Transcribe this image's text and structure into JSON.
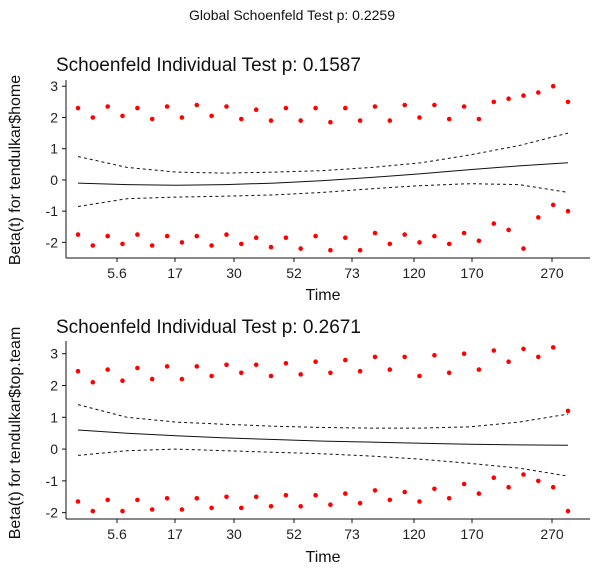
{
  "global_title": "Global Schoenfeld Test p: 0.2259",
  "chart_data": [
    {
      "type": "scatter",
      "title": "Schoenfeld Individual Test p: 0.1587",
      "xlabel": "Time",
      "ylabel": "Beta(t) for tendulkar$home",
      "x_tick_labels": [
        "5.6",
        "17",
        "30",
        "52",
        "73",
        "120",
        "170",
        "270"
      ],
      "y_ticks": [
        -2,
        -1,
        0,
        1,
        2,
        3
      ],
      "ylim": [
        -2.5,
        3.2
      ],
      "point_color": "#ff0000",
      "residual_bands": [
        {
          "name": "upper",
          "y": [
            2.3,
            2.0,
            2.35,
            2.05,
            2.3,
            1.95,
            2.35,
            2.0,
            2.4,
            2.05,
            2.35,
            1.95,
            2.25,
            1.9,
            2.3,
            1.9,
            2.3,
            1.85,
            2.3,
            1.9,
            2.35,
            1.9,
            2.4,
            2.0,
            2.4,
            1.95,
            2.35,
            1.95,
            2.5,
            2.6,
            2.7,
            2.8,
            3.0,
            2.5
          ]
        },
        {
          "name": "lower",
          "y": [
            -1.75,
            -2.1,
            -1.8,
            -2.05,
            -1.75,
            -2.1,
            -1.8,
            -2.0,
            -1.8,
            -2.1,
            -1.75,
            -2.05,
            -1.85,
            -2.15,
            -1.85,
            -2.2,
            -1.8,
            -2.25,
            -1.85,
            -2.25,
            -1.7,
            -2.05,
            -1.75,
            -2.0,
            -1.8,
            -2.05,
            -1.7,
            -1.95,
            -1.4,
            -1.6,
            -2.2,
            -1.2,
            -0.8,
            -1.0
          ]
        }
      ],
      "fit_line": [
        -0.1,
        -0.15,
        -0.17,
        -0.15,
        -0.1,
        -0.02,
        0.08,
        0.2,
        0.33,
        0.45,
        0.55
      ],
      "ci_upper": [
        0.75,
        0.4,
        0.25,
        0.22,
        0.25,
        0.3,
        0.4,
        0.55,
        0.8,
        1.1,
        1.5
      ],
      "ci_lower": [
        -0.85,
        -0.6,
        -0.55,
        -0.52,
        -0.48,
        -0.4,
        -0.28,
        -0.18,
        -0.12,
        -0.15,
        -0.4
      ]
    },
    {
      "type": "scatter",
      "title": "Schoenfeld Individual Test p: 0.2671",
      "xlabel": "Time",
      "ylabel": "Beta(t) for tendulkar$top.team",
      "x_tick_labels": [
        "5.6",
        "17",
        "30",
        "52",
        "73",
        "120",
        "170",
        "270"
      ],
      "y_ticks": [
        -2,
        -1,
        0,
        1,
        2,
        3
      ],
      "ylim": [
        -2.2,
        3.4
      ],
      "point_color": "#ff0000",
      "residual_bands": [
        {
          "name": "upper",
          "y": [
            2.45,
            2.1,
            2.5,
            2.15,
            2.55,
            2.2,
            2.6,
            2.2,
            2.6,
            2.3,
            2.65,
            2.4,
            2.65,
            2.3,
            2.7,
            2.35,
            2.75,
            2.4,
            2.8,
            2.45,
            2.9,
            2.5,
            2.9,
            2.3,
            2.95,
            2.4,
            3.0,
            2.5,
            3.1,
            2.75,
            3.15,
            2.9,
            3.2,
            1.2
          ]
        },
        {
          "name": "lower",
          "y": [
            -1.65,
            -1.95,
            -1.6,
            -1.95,
            -1.6,
            -1.9,
            -1.55,
            -1.9,
            -1.55,
            -1.85,
            -1.5,
            -1.85,
            -1.5,
            -1.8,
            -1.45,
            -1.8,
            -1.45,
            -1.75,
            -1.4,
            -1.7,
            -1.3,
            -1.6,
            -1.35,
            -1.65,
            -1.25,
            -1.55,
            -1.1,
            -1.4,
            -0.9,
            -1.2,
            -0.8,
            -1.0,
            -1.2,
            -1.95
          ]
        }
      ],
      "fit_line": [
        0.6,
        0.5,
        0.42,
        0.35,
        0.3,
        0.25,
        0.22,
        0.18,
        0.15,
        0.13,
        0.12
      ],
      "ci_upper": [
        1.4,
        1.0,
        0.85,
        0.78,
        0.72,
        0.68,
        0.66,
        0.66,
        0.7,
        0.85,
        1.1
      ],
      "ci_lower": [
        -0.2,
        -0.05,
        0.0,
        -0.05,
        -0.1,
        -0.15,
        -0.22,
        -0.32,
        -0.45,
        -0.6,
        -0.85
      ]
    }
  ]
}
